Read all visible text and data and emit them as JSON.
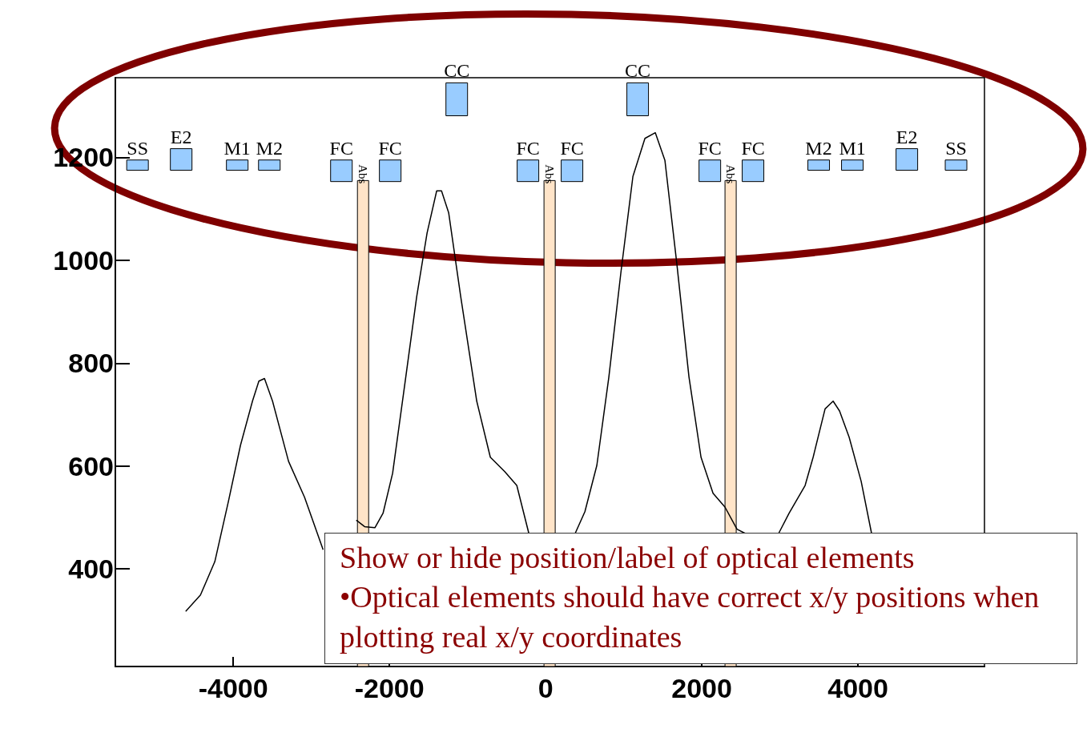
{
  "chart_data": {
    "type": "line",
    "xlim": [
      -5510,
      5620
    ],
    "xticks": [
      -4000,
      -2000,
      0,
      2000,
      4000
    ],
    "ylim": [
      210,
      1355
    ],
    "yticks": [
      400,
      600,
      800,
      1000,
      1200
    ],
    "grid": false,
    "marker": "none",
    "line_style": "solid",
    "series": [
      {
        "color": "#000000",
        "x": [
          -4605,
          -4420,
          -4236,
          -4062,
          -3908,
          -3754,
          -3672,
          -3600,
          -3497,
          -3292,
          -3087,
          -2851,
          -2600,
          -2420,
          -2318,
          -2185,
          -2082,
          -1959,
          -1805,
          -1651,
          -1518,
          -1395,
          -1333,
          -1241,
          -1087,
          -882,
          -708,
          -523,
          -369,
          -215,
          -100,
          379,
          503,
          656,
          810,
          964,
          1118,
          1272,
          1405,
          1528,
          1682,
          1836,
          1990,
          2144,
          2297,
          2451,
          2554,
          2750,
          2985,
          3118,
          3323,
          3426,
          3579,
          3682,
          3764,
          3887,
          4041,
          4174
        ],
        "values": [
          318,
          349,
          414,
          531,
          640,
          726,
          765,
          770,
          726,
          609,
          539,
          438,
          null,
          494,
          482,
          480,
          508,
          586,
          757,
          929,
          1053,
          1135,
          1135,
          1092,
          929,
          726,
          617,
          589,
          562,
          469,
          null,
          469,
          511,
          601,
          773,
          976,
          1163,
          1237,
          1248,
          1194,
          991,
          773,
          617,
          547,
          520,
          477,
          469,
          null,
          469,
          508,
          562,
          617,
          711,
          726,
          707,
          656,
          570,
          469
        ]
      },
      {
        "type": "bar",
        "color": "#99ccff",
        "x": [
          -5226,
          -4667,
          -3949,
          -3538,
          -2615,
          -1990,
          -1138,
          -226,
          338,
          1179,
          2103,
          2656,
          3497,
          3928,
          4626,
          5256
        ],
        "base": [
          1175,
          1175,
          1175,
          1175,
          1153,
          1153,
          1281,
          1153,
          1153,
          1281,
          1153,
          1153,
          1175,
          1175,
          1175,
          1175
        ],
        "values": [
          20,
          42,
          20,
          20,
          42,
          42,
          64,
          42,
          42,
          64,
          42,
          42,
          20,
          20,
          42,
          20
        ],
        "value_labels": [
          "SS",
          "E2",
          "M1",
          "M2",
          "FC",
          "FC",
          "CC",
          "FC",
          "FC",
          "CC",
          "FC",
          "FC",
          "M2",
          "M1",
          "E2",
          "SS"
        ]
      },
      {
        "type": "bar",
        "color": "#ffe4c8",
        "x": [
          -2338,
          51,
          2369
        ],
        "base": [
          210,
          210,
          210
        ],
        "values": [
          945,
          945,
          945
        ],
        "value_labels": [
          "Abs",
          "Abs",
          "Abs"
        ]
      }
    ],
    "annotations": [
      "Show or hide position/label of optical elements",
      "•Optical elements should have correct x/y positions when plotting real x/y coordinates"
    ]
  }
}
